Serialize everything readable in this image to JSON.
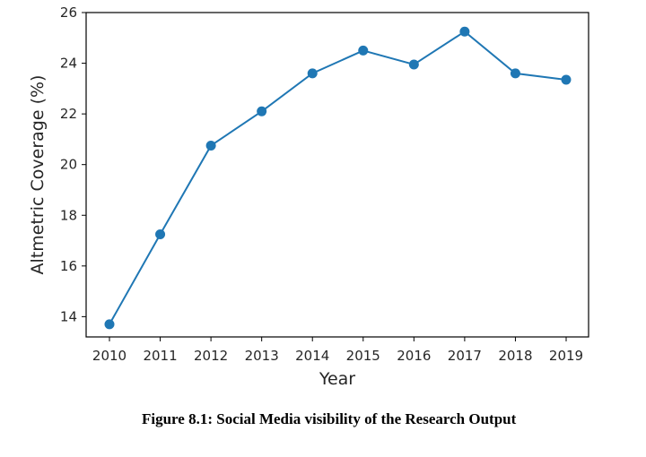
{
  "chart_data": {
    "type": "line",
    "x": [
      "2010",
      "2011",
      "2012",
      "2013",
      "2014",
      "2015",
      "2016",
      "2017",
      "2018",
      "2019"
    ],
    "series": [
      {
        "values": [
          13.7,
          17.25,
          20.75,
          22.1,
          23.6,
          24.5,
          23.95,
          25.25,
          23.6,
          23.35
        ]
      }
    ],
    "xlabel": "Year",
    "ylabel": "Altmetric Coverage (%)",
    "ylim": [
      13.2,
      26
    ],
    "yticks": [
      14,
      16,
      18,
      20,
      22,
      24,
      26
    ],
    "grid": false,
    "color": "#1f77b4"
  },
  "caption": "Figure 8.1: Social Media visibility of the Research Output"
}
